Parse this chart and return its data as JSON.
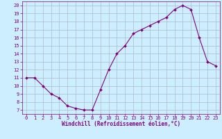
{
  "x": [
    0,
    1,
    2,
    3,
    4,
    5,
    6,
    7,
    8,
    9,
    10,
    11,
    12,
    13,
    14,
    15,
    16,
    17,
    18,
    19,
    20,
    21,
    22,
    23
  ],
  "y": [
    11.0,
    11.0,
    10.0,
    9.0,
    8.5,
    7.5,
    7.2,
    7.0,
    7.0,
    9.5,
    12.0,
    14.0,
    15.0,
    16.5,
    17.0,
    17.5,
    18.0,
    18.5,
    19.5,
    20.0,
    19.5,
    16.0,
    13.0,
    12.5
  ],
  "line_color": "#800080",
  "marker": "D",
  "marker_size": 2.0,
  "bg_color": "#cceeff",
  "grid_color": "#aabbcc",
  "xlabel": "Windchill (Refroidissement éolien,°C)",
  "ylabel_ticks": [
    7,
    8,
    9,
    10,
    11,
    12,
    13,
    14,
    15,
    16,
    17,
    18,
    19,
    20
  ],
  "ylim": [
    6.5,
    20.5
  ],
  "xlim": [
    -0.5,
    23.5
  ],
  "axis_color": "#800080",
  "tick_color": "#800080",
  "label_color": "#800080",
  "tick_fontsize": 5.0,
  "xlabel_fontsize": 5.5
}
